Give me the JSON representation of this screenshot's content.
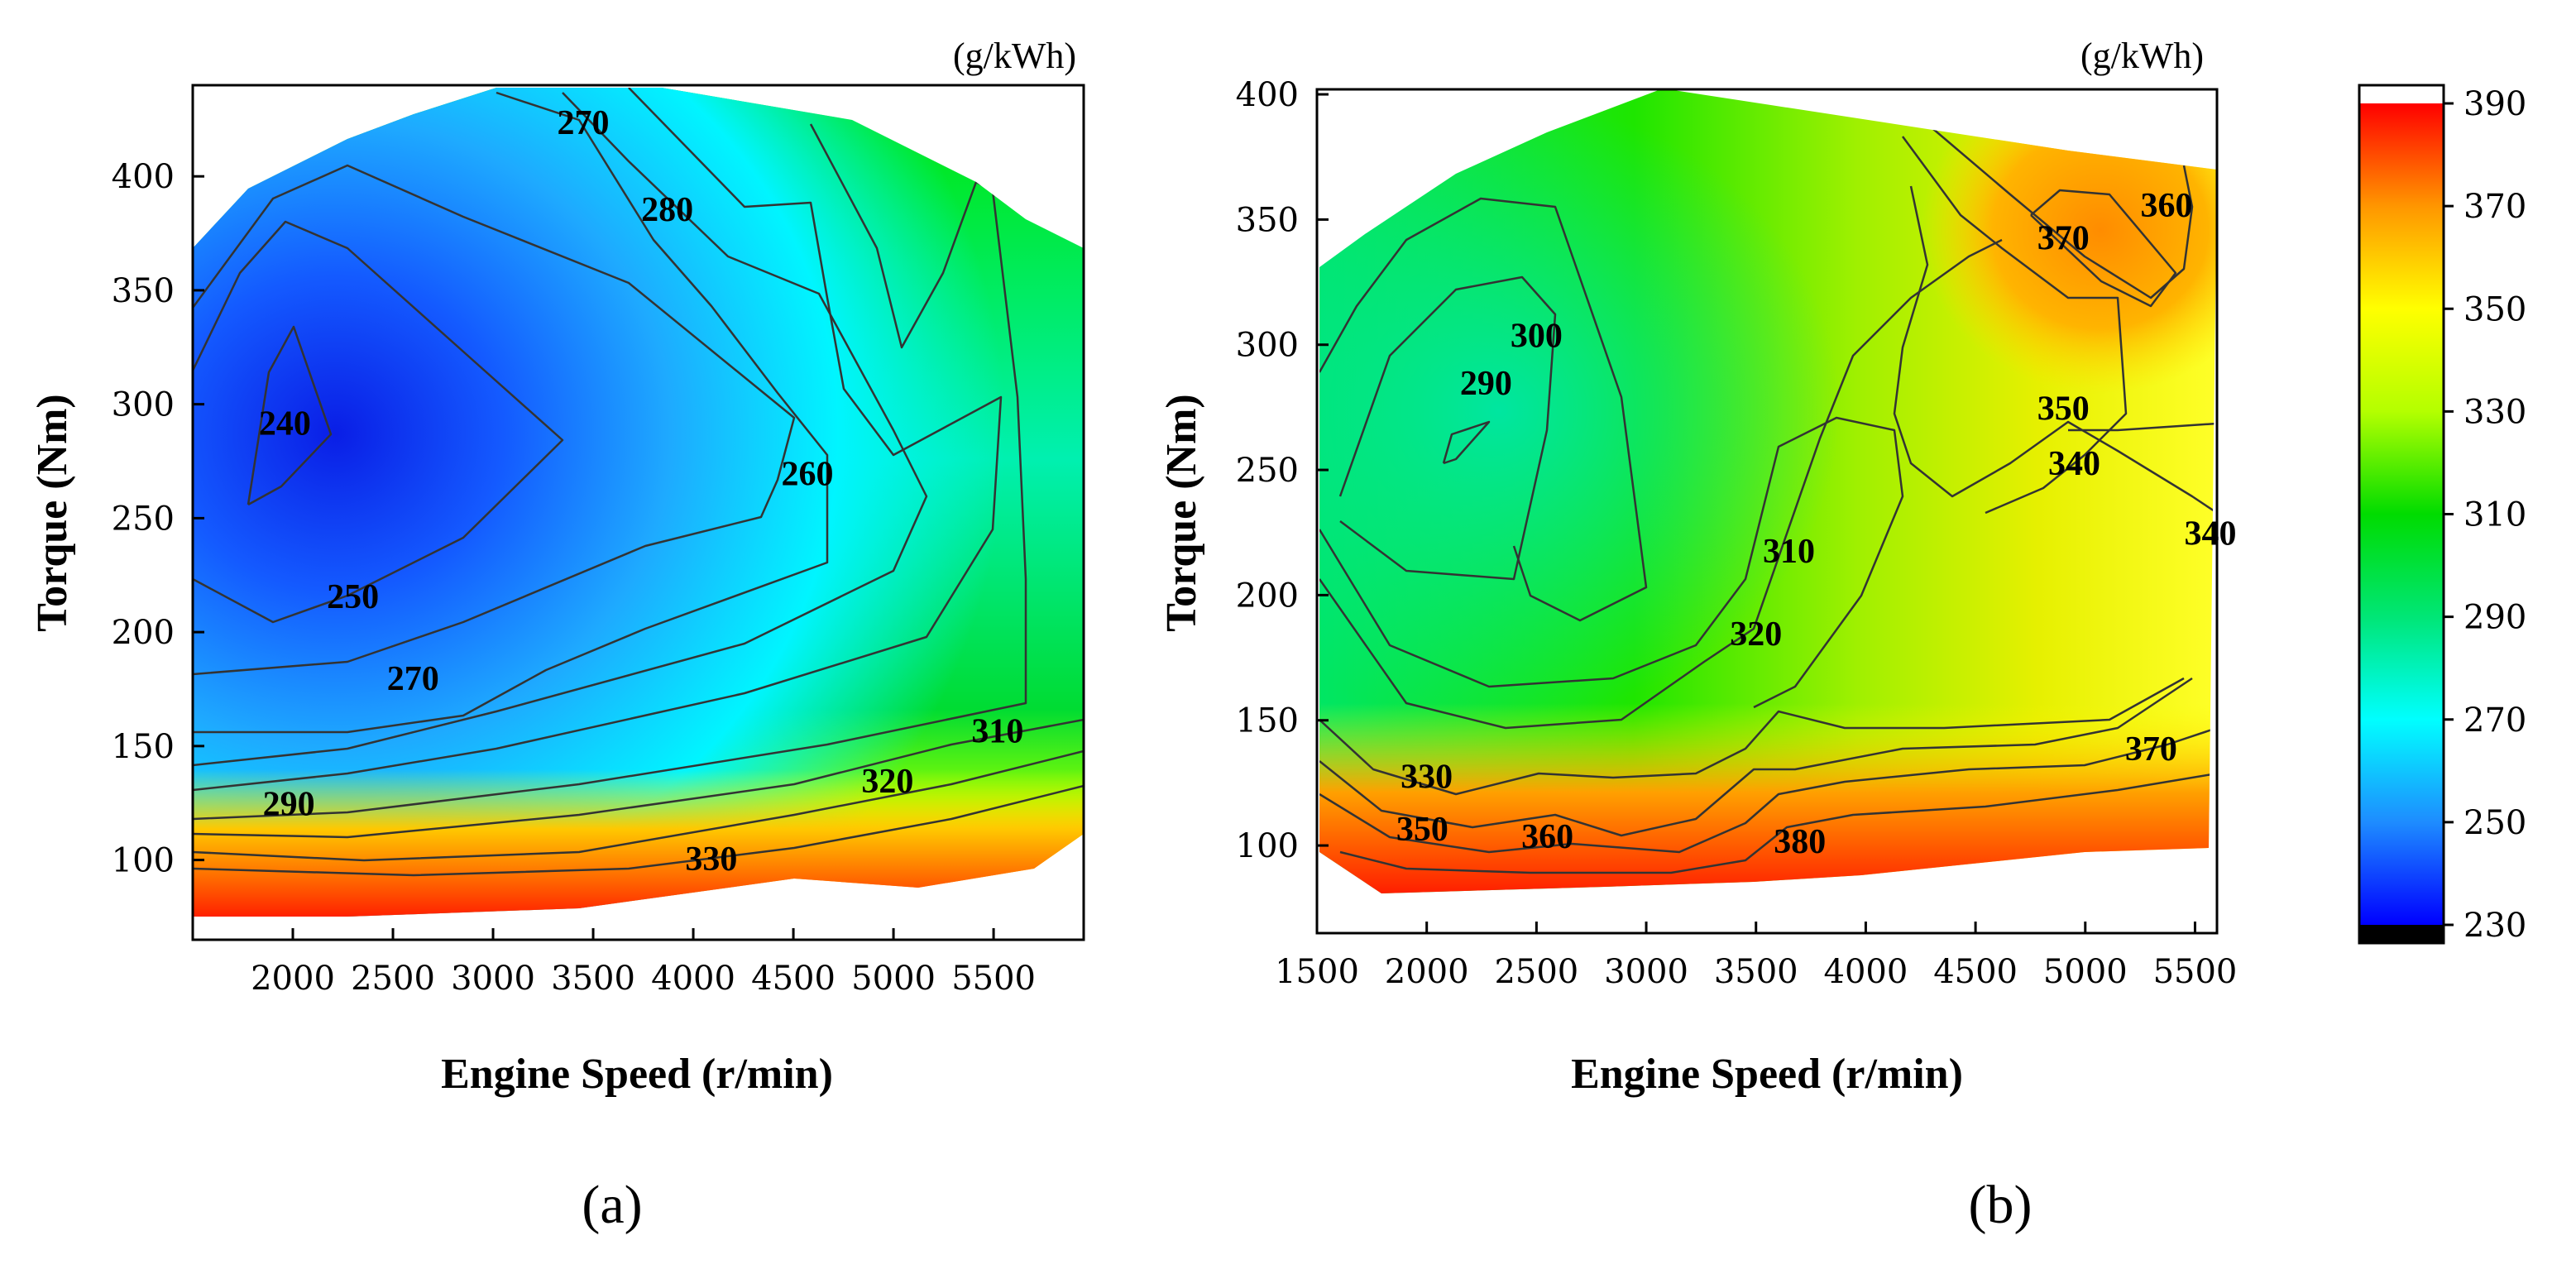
{
  "chart_data": [
    {
      "type": "heatmap",
      "subtype": "contour",
      "panel_label": "(a)",
      "unit_label": "(g/kWh)",
      "xlabel": "Engine Speed (r/min)",
      "ylabel": "Torque (Nm)",
      "xlim": [
        1500,
        5950
      ],
      "ylim": [
        65,
        440
      ],
      "xticks": [
        2000,
        2500,
        3000,
        3500,
        4000,
        4500,
        5000,
        5500
      ],
      "yticks": [
        100,
        150,
        200,
        250,
        300,
        350,
        400
      ],
      "contour_labels": [
        {
          "text": "270",
          "x": 3450,
          "y": 424
        },
        {
          "text": "280",
          "x": 3870,
          "y": 386
        },
        {
          "text": "240",
          "x": 1960,
          "y": 292
        },
        {
          "text": "260",
          "x": 4570,
          "y": 270
        },
        {
          "text": "250",
          "x": 2300,
          "y": 216
        },
        {
          "text": "270",
          "x": 2600,
          "y": 180
        },
        {
          "text": "310",
          "x": 5520,
          "y": 157
        },
        {
          "text": "320",
          "x": 4970,
          "y": 135
        },
        {
          "text": "290",
          "x": 1980,
          "y": 125
        },
        {
          "text": "330",
          "x": 4090,
          "y": 101
        }
      ]
    },
    {
      "type": "heatmap",
      "subtype": "contour",
      "panel_label": "(b)",
      "unit_label": "(g/kWh)",
      "xlabel": "Engine Speed (r/min)",
      "ylabel": "Torque (Nm)",
      "xlim": [
        1500,
        5600
      ],
      "ylim": [
        65,
        402
      ],
      "xticks": [
        1500,
        2000,
        2500,
        3000,
        3500,
        4000,
        4500,
        5000,
        5500
      ],
      "yticks": [
        100,
        150,
        200,
        250,
        300,
        350,
        400
      ],
      "contour_labels": [
        {
          "text": "360",
          "x": 5370,
          "y": 356
        },
        {
          "text": "370",
          "x": 4900,
          "y": 343
        },
        {
          "text": "300",
          "x": 2500,
          "y": 304
        },
        {
          "text": "290",
          "x": 2270,
          "y": 285
        },
        {
          "text": "350",
          "x": 4900,
          "y": 275
        },
        {
          "text": "340",
          "x": 4950,
          "y": 253
        },
        {
          "text": "340",
          "x": 5570,
          "y": 225
        },
        {
          "text": "310",
          "x": 3650,
          "y": 218
        },
        {
          "text": "320",
          "x": 3500,
          "y": 185
        },
        {
          "text": "330",
          "x": 2000,
          "y": 128
        },
        {
          "text": "370",
          "x": 5300,
          "y": 139
        },
        {
          "text": "350",
          "x": 1980,
          "y": 107
        },
        {
          "text": "360",
          "x": 2550,
          "y": 104
        },
        {
          "text": "380",
          "x": 3700,
          "y": 102
        }
      ]
    }
  ],
  "colorbar": {
    "ticks": [
      "390",
      "370",
      "350",
      "330",
      "310",
      "290",
      "270",
      "250",
      "230"
    ],
    "min": 230,
    "max": 390,
    "colors": [
      "#000000",
      "#0000ff",
      "#1e8cff",
      "#00ffff",
      "#00e676",
      "#00dc00",
      "#b4ff00",
      "#ffff00",
      "#ff9600",
      "#ff0000",
      "#ffffff"
    ]
  }
}
